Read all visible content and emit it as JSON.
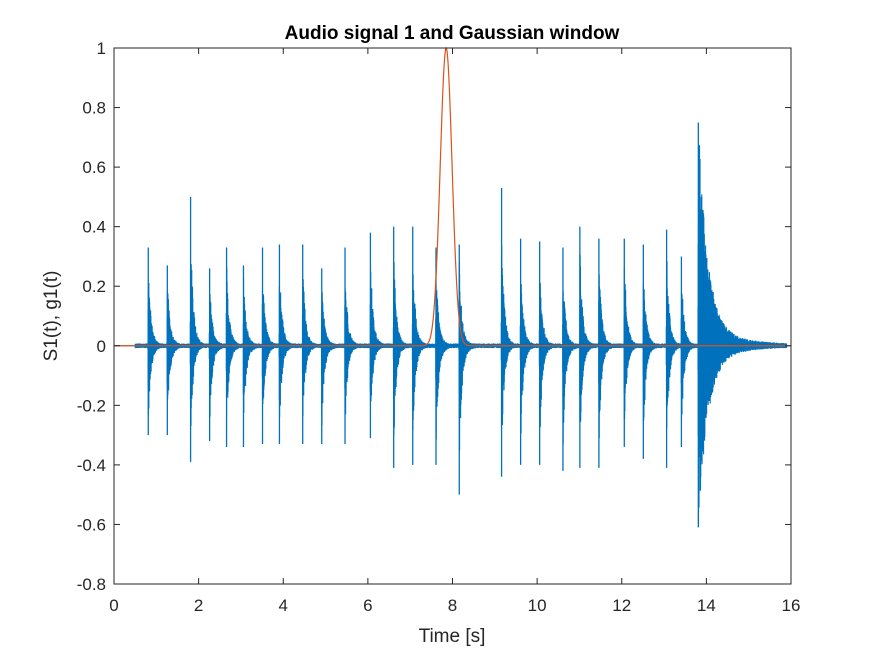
{
  "chart_data": {
    "type": "line",
    "title": "Audio signal 1 and Gaussian window",
    "xlabel": "Time [s]",
    "ylabel": "S1(t), g1(t)",
    "xlim": [
      0,
      16
    ],
    "ylim": [
      -0.8,
      1
    ],
    "xticks": [
      "0",
      "2",
      "4",
      "6",
      "8",
      "10",
      "12",
      "14",
      "16"
    ],
    "yticks": [
      "-0.8",
      "-0.6",
      "-0.4",
      "-0.2",
      "0",
      "0.2",
      "0.4",
      "0.6",
      "0.8",
      "1"
    ],
    "grid": false,
    "colors": {
      "signal": "#0072BD",
      "window": "#D95319",
      "axes": "#262626"
    },
    "series": [
      {
        "kind": "audio-signal",
        "x_range": [
          0.5,
          15.9
        ],
        "note_onsets": [
          0.8,
          1.25,
          1.8,
          2.25,
          2.65,
          3.05,
          3.5,
          3.9,
          4.45,
          4.9,
          5.45,
          6.05,
          6.6,
          7.05,
          7.6,
          8.15,
          9.15,
          9.6,
          10.05,
          10.6,
          11.0,
          11.45,
          12.05,
          12.5,
          13.05,
          13.4,
          13.8
        ],
        "note_peaks_pos": [
          0.33,
          0.27,
          0.5,
          0.26,
          0.33,
          0.27,
          0.33,
          0.34,
          0.34,
          0.26,
          0.33,
          0.38,
          0.4,
          0.4,
          0.33,
          0.34,
          0.53,
          0.36,
          0.35,
          0.33,
          0.4,
          0.36,
          0.36,
          0.34,
          0.39,
          0.3,
          0.75
        ],
        "note_peaks_neg": [
          -0.3,
          -0.3,
          -0.39,
          -0.32,
          -0.34,
          -0.34,
          -0.33,
          -0.33,
          -0.33,
          -0.33,
          -0.33,
          -0.31,
          -0.41,
          -0.4,
          -0.4,
          -0.5,
          -0.44,
          -0.4,
          -0.4,
          -0.42,
          -0.41,
          -0.41,
          -0.34,
          -0.38,
          -0.41,
          -0.34,
          -0.61
        ]
      },
      {
        "kind": "gaussian-window",
        "center": 7.85,
        "width": 0.14,
        "peak": 1.0
      }
    ]
  }
}
